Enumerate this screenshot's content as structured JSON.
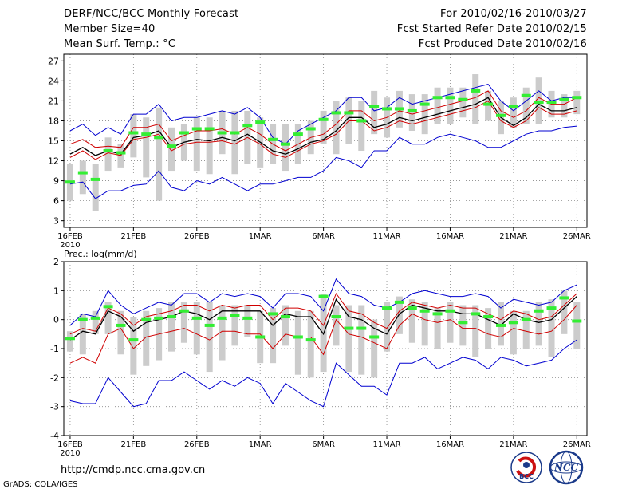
{
  "header": {
    "title": "DERF/NCC/BCC Monthly Forecast",
    "member_size": "Member Size=40",
    "variable": "Mean Surf. Temp.: °C",
    "period": "For 2010/02/16-2010/03/27",
    "fcst_started": "Fcst Started Refer Date 2010/02/15",
    "fcst_produced": "Fcst Produced Date 2010/02/16"
  },
  "footer": {
    "url": "http://cmdp.ncc.cma.gov.cn",
    "grads": "GrADS: COLA/IGES",
    "logo_left": "BCC",
    "logo_right": "NCC"
  },
  "colors": {
    "envelope": "#0000d0",
    "spread": "#d00000",
    "mean": "#000000",
    "median": "#33ee33",
    "box": "#cccccc",
    "grid": "#888888"
  },
  "chart_data": [
    {
      "type": "line",
      "title": "Mean Surf. Temp.: °C",
      "x_tick_labels": [
        "16FEB",
        "21FEB",
        "26FEB",
        "1MAR",
        "6MAR",
        "11MAR",
        "16MAR",
        "21MAR",
        "26MAR"
      ],
      "x_tick_days": [
        0,
        5,
        10,
        15,
        20,
        25,
        30,
        35,
        40
      ],
      "x_year_label": "2010",
      "xlim": [
        -0.5,
        40.8
      ],
      "ylim": [
        2,
        28
      ],
      "yticks": [
        3,
        6,
        9,
        12,
        15,
        18,
        21,
        24,
        27
      ],
      "grid": true,
      "days": [
        0,
        1,
        2,
        3,
        4,
        5,
        6,
        7,
        8,
        9,
        10,
        11,
        12,
        13,
        14,
        15,
        16,
        17,
        18,
        19,
        20,
        21,
        22,
        23,
        24,
        25,
        26,
        27,
        28,
        29,
        30,
        31,
        32,
        33,
        34,
        35,
        36,
        37,
        38,
        39,
        40
      ],
      "series": [
        {
          "name": "max",
          "values": [
            16.5,
            17.5,
            15.8,
            17.0,
            16.0,
            19.0,
            19.0,
            20.5,
            18.0,
            18.5,
            18.5,
            19.0,
            19.5,
            19.0,
            20.0,
            18.5,
            15.5,
            14.5,
            16.5,
            17.5,
            18.5,
            19.5,
            21.5,
            21.5,
            19.5,
            20.0,
            21.5,
            20.5,
            21.0,
            21.5,
            22.0,
            22.5,
            23.0,
            23.5,
            21.0,
            19.5,
            21.0,
            22.5,
            21.0,
            21.5,
            21.5
          ]
        },
        {
          "name": "upper",
          "values": [
            14.5,
            15.2,
            14.0,
            14.2,
            14.0,
            17.0,
            17.0,
            17.5,
            15.0,
            15.8,
            16.5,
            16.5,
            16.8,
            16.0,
            17.0,
            16.0,
            14.5,
            13.5,
            14.5,
            15.5,
            16.0,
            17.5,
            19.5,
            19.5,
            18.0,
            18.5,
            19.5,
            19.0,
            19.5,
            20.0,
            20.5,
            21.0,
            21.5,
            22.5,
            19.5,
            18.5,
            19.5,
            21.5,
            20.5,
            20.5,
            21.5
          ]
        },
        {
          "name": "mean",
          "values": [
            13.0,
            14.0,
            12.8,
            13.5,
            13.0,
            15.5,
            15.8,
            16.5,
            14.0,
            14.8,
            15.2,
            15.0,
            15.5,
            15.0,
            16.0,
            14.8,
            13.5,
            13.0,
            13.8,
            14.8,
            15.2,
            16.5,
            18.5,
            18.5,
            17.0,
            17.5,
            18.5,
            18.0,
            18.5,
            19.0,
            19.5,
            20.0,
            20.5,
            21.5,
            18.5,
            17.3,
            18.5,
            20.5,
            19.5,
            19.5,
            20.0
          ]
        },
        {
          "name": "lower",
          "values": [
            12.5,
            13.5,
            12.2,
            13.2,
            12.8,
            15.2,
            15.5,
            16.0,
            13.5,
            14.5,
            14.8,
            14.8,
            15.0,
            14.5,
            15.5,
            14.5,
            13.0,
            12.5,
            13.5,
            14.5,
            15.0,
            16.0,
            18.0,
            18.0,
            16.5,
            17.0,
            18.0,
            17.5,
            18.0,
            18.5,
            19.0,
            19.5,
            20.0,
            21.0,
            18.0,
            17.0,
            18.0,
            20.0,
            19.0,
            19.0,
            19.5
          ]
        },
        {
          "name": "min",
          "values": [
            8.5,
            8.8,
            6.3,
            7.5,
            7.5,
            8.3,
            8.5,
            10.5,
            8.0,
            7.5,
            9.0,
            8.5,
            9.5,
            8.5,
            7.5,
            8.5,
            8.5,
            9.0,
            9.5,
            9.5,
            10.5,
            12.5,
            12.0,
            11.0,
            13.5,
            13.5,
            15.5,
            14.5,
            14.5,
            15.5,
            16.0,
            15.5,
            15.0,
            14.0,
            14.0,
            15.0,
            16.0,
            16.5,
            16.5,
            17.0,
            17.2
          ]
        },
        {
          "name": "median",
          "values": [
            8.8,
            10.2,
            9.2,
            13.5,
            13.2,
            16.2,
            16.0,
            15.5,
            14.2,
            16.2,
            16.8,
            16.8,
            16.2,
            16.2,
            17.3,
            17.8,
            15.2,
            14.5,
            16.0,
            16.8,
            18.2,
            19.2,
            19.2,
            18.0,
            20.2,
            19.8,
            19.8,
            19.5,
            20.5,
            21.5,
            21.5,
            21.2,
            22.5,
            20.5,
            18.8,
            20.2,
            21.8,
            20.8,
            20.8,
            21.2,
            21.5
          ]
        },
        {
          "name": "box_high",
          "values": [
            11.5,
            12.0,
            11.5,
            15.5,
            14.5,
            19.0,
            18.5,
            20.0,
            17.0,
            17.5,
            18.5,
            18.5,
            19.5,
            19.5,
            19.5,
            18.5,
            17.5,
            17.5,
            17.5,
            18.0,
            19.5,
            21.0,
            21.5,
            21.0,
            22.5,
            21.5,
            22.5,
            22.0,
            22.0,
            23.0,
            23.0,
            23.0,
            25.0,
            22.5,
            21.0,
            21.5,
            23.0,
            24.5,
            22.5,
            22.0,
            22.5
          ]
        },
        {
          "name": "box_low",
          "values": [
            6.0,
            7.0,
            4.5,
            10.5,
            11.0,
            12.5,
            9.5,
            6.0,
            10.5,
            12.0,
            10.5,
            10.0,
            13.0,
            10.0,
            11.5,
            11.0,
            11.5,
            10.5,
            11.5,
            13.0,
            14.5,
            13.0,
            14.5,
            13.5,
            16.0,
            15.5,
            17.0,
            16.5,
            16.0,
            17.5,
            17.5,
            18.5,
            17.5,
            18.0,
            16.0,
            17.0,
            17.5,
            17.5,
            18.5,
            18.5,
            19.0
          ]
        }
      ]
    },
    {
      "type": "line",
      "title": "Prec.: log(mm/d)",
      "x_tick_labels": [
        "16FEB",
        "21FEB",
        "26FEB",
        "1MAR",
        "6MAR",
        "11MAR",
        "16MAR",
        "21MAR",
        "26MAR"
      ],
      "x_tick_days": [
        0,
        5,
        10,
        15,
        20,
        25,
        30,
        35,
        40
      ],
      "x_year_label": "2010",
      "xlim": [
        -0.5,
        40.8
      ],
      "ylim": [
        -4,
        2
      ],
      "yticks": [
        -4,
        -3,
        -2,
        -1,
        0,
        1,
        2
      ],
      "grid": true,
      "days": [
        0,
        1,
        2,
        3,
        4,
        5,
        6,
        7,
        8,
        9,
        10,
        11,
        12,
        13,
        14,
        15,
        16,
        17,
        18,
        19,
        20,
        21,
        22,
        23,
        24,
        25,
        26,
        27,
        28,
        29,
        30,
        31,
        32,
        33,
        34,
        35,
        36,
        37,
        38,
        39,
        40
      ],
      "series": [
        {
          "name": "max",
          "values": [
            -0.2,
            0.2,
            0.1,
            1.0,
            0.5,
            0.2,
            0.4,
            0.6,
            0.5,
            0.9,
            0.9,
            0.6,
            0.9,
            0.8,
            0.9,
            0.8,
            0.4,
            0.9,
            0.9,
            0.8,
            0.3,
            1.4,
            0.9,
            0.8,
            0.5,
            0.4,
            0.6,
            0.9,
            1.0,
            0.9,
            0.8,
            0.8,
            0.9,
            0.8,
            0.4,
            0.7,
            0.6,
            0.5,
            0.6,
            1.0,
            1.2
          ]
        },
        {
          "name": "upper",
          "values": [
            -0.5,
            -0.3,
            -0.4,
            0.4,
            0.2,
            -0.2,
            0.1,
            0.2,
            0.3,
            0.5,
            0.5,
            0.3,
            0.5,
            0.4,
            0.5,
            0.5,
            0.0,
            0.4,
            0.4,
            0.3,
            -0.2,
            0.9,
            0.3,
            0.2,
            -0.1,
            -0.3,
            0.3,
            0.6,
            0.5,
            0.4,
            0.5,
            0.4,
            0.4,
            0.2,
            0.0,
            0.3,
            0.2,
            0.0,
            0.1,
            0.5,
            0.9
          ]
        },
        {
          "name": "mean",
          "values": [
            -0.7,
            -0.4,
            -0.5,
            0.3,
            0.1,
            -0.4,
            -0.1,
            0.0,
            0.1,
            0.3,
            0.2,
            0.0,
            0.3,
            0.3,
            0.3,
            0.3,
            -0.2,
            0.2,
            0.1,
            0.1,
            -0.5,
            0.7,
            0.1,
            0.0,
            -0.3,
            -0.5,
            0.2,
            0.5,
            0.4,
            0.3,
            0.3,
            0.2,
            0.2,
            0.0,
            -0.2,
            0.2,
            0.0,
            -0.1,
            0.0,
            0.4,
            0.8
          ]
        },
        {
          "name": "lower",
          "values": [
            -1.5,
            -1.3,
            -1.5,
            -0.5,
            -0.3,
            -1.0,
            -0.6,
            -0.5,
            -0.4,
            -0.3,
            -0.5,
            -0.7,
            -0.4,
            -0.4,
            -0.5,
            -0.5,
            -1.0,
            -0.5,
            -0.6,
            -0.6,
            -1.2,
            0.0,
            -0.5,
            -0.6,
            -0.8,
            -1.0,
            -0.2,
            0.2,
            0.0,
            -0.1,
            0.0,
            -0.3,
            -0.3,
            -0.5,
            -0.6,
            -0.3,
            -0.4,
            -0.5,
            -0.4,
            0.0,
            0.5
          ]
        },
        {
          "name": "min",
          "values": [
            -2.8,
            -2.9,
            -2.9,
            -2.0,
            -2.5,
            -3.0,
            -2.9,
            -2.1,
            -2.1,
            -1.8,
            -2.1,
            -2.4,
            -2.1,
            -2.3,
            -2.0,
            -2.2,
            -2.9,
            -2.2,
            -2.5,
            -2.8,
            -3.0,
            -1.5,
            -1.9,
            -2.3,
            -2.3,
            -2.6,
            -1.5,
            -1.5,
            -1.3,
            -1.7,
            -1.5,
            -1.3,
            -1.4,
            -1.7,
            -1.3,
            -1.4,
            -1.6,
            -1.5,
            -1.4,
            -1.0,
            -0.7
          ]
        },
        {
          "name": "median",
          "values": [
            -0.65,
            0.0,
            0.05,
            0.45,
            -0.2,
            -0.7,
            0.0,
            0.05,
            0.1,
            0.3,
            0.05,
            -0.2,
            0.05,
            0.15,
            0.05,
            -0.6,
            0.2,
            0.1,
            -0.6,
            -0.7,
            0.8,
            0.1,
            -0.3,
            -0.3,
            -0.6,
            0.4,
            0.6,
            0.4,
            0.3,
            0.2,
            0.3,
            -0.1,
            0.2,
            0.1,
            -0.2,
            -0.1,
            0.0,
            0.3,
            0.4,
            0.75,
            -0.05
          ]
        },
        {
          "name": "box_high",
          "values": [
            -0.4,
            0.2,
            0.3,
            0.6,
            0.3,
            0.1,
            0.3,
            0.4,
            0.6,
            0.6,
            0.6,
            0.6,
            0.5,
            0.5,
            0.5,
            0.3,
            0.4,
            0.5,
            0.3,
            0.3,
            0.9,
            0.5,
            0.5,
            0.5,
            0.0,
            0.6,
            0.8,
            0.7,
            0.6,
            0.4,
            0.6,
            0.5,
            0.5,
            0.4,
            0.6,
            0.3,
            0.3,
            0.6,
            0.7,
            1.0,
            0.6
          ]
        },
        {
          "name": "box_low",
          "values": [
            -1.1,
            -1.2,
            -0.5,
            -0.5,
            -1.2,
            -1.9,
            -1.6,
            -1.4,
            -1.1,
            -0.8,
            -1.2,
            -1.8,
            -1.4,
            -0.9,
            -0.6,
            -1.5,
            -1.5,
            -0.9,
            -1.9,
            -2.0,
            -1.8,
            -0.9,
            -1.8,
            -1.9,
            -2.0,
            -1.1,
            -0.5,
            -0.8,
            -0.9,
            -1.0,
            -0.8,
            -0.9,
            -1.3,
            -1.0,
            -0.9,
            -1.2,
            -1.0,
            -0.9,
            -1.3,
            -0.5,
            -1.0
          ]
        }
      ]
    }
  ]
}
